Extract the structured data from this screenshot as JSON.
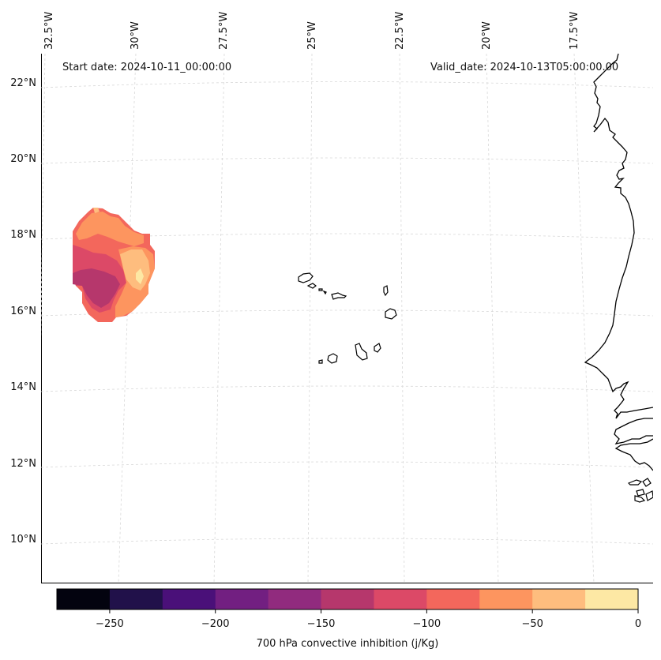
{
  "header": {
    "start_date": "Start date: 2024-10-11_00:00:00",
    "valid_date": "Valid_date: 2024-10-13T05:00:00.00"
  },
  "grid": {
    "lon_labels": [
      "32.5°W",
      "30°W",
      "27.5°W",
      "25°W",
      "22.5°W",
      "20°W",
      "17.5°W"
    ],
    "lat_labels": [
      "22°N",
      "20°N",
      "18°N",
      "16°N",
      "14°N",
      "12°N",
      "10°N"
    ]
  },
  "colorbar": {
    "label": "700 hPa convective inhibition (j/Kg)",
    "tick_labels": [
      "−250",
      "−200",
      "−150",
      "−100",
      "−50",
      "0"
    ],
    "range": [
      -275,
      0
    ],
    "bins": [
      {
        "from": -275,
        "to": -250,
        "color": "#03030f"
      },
      {
        "from": -250,
        "to": -225,
        "color": "#21114a"
      },
      {
        "from": -225,
        "to": -200,
        "color": "#4a1079"
      },
      {
        "from": -200,
        "to": -175,
        "color": "#721f81"
      },
      {
        "from": -175,
        "to": -150,
        "color": "#912b7e"
      },
      {
        "from": -150,
        "to": -125,
        "color": "#b6376c"
      },
      {
        "from": -125,
        "to": -100,
        "color": "#dc4967"
      },
      {
        "from": -100,
        "to": -75,
        "color": "#f3675c"
      },
      {
        "from": -75,
        "to": -50,
        "color": "#fd955f"
      },
      {
        "from": -50,
        "to": -25,
        "color": "#febd7e"
      },
      {
        "from": -25,
        "to": 0,
        "color": "#fde8a4"
      }
    ]
  }
}
